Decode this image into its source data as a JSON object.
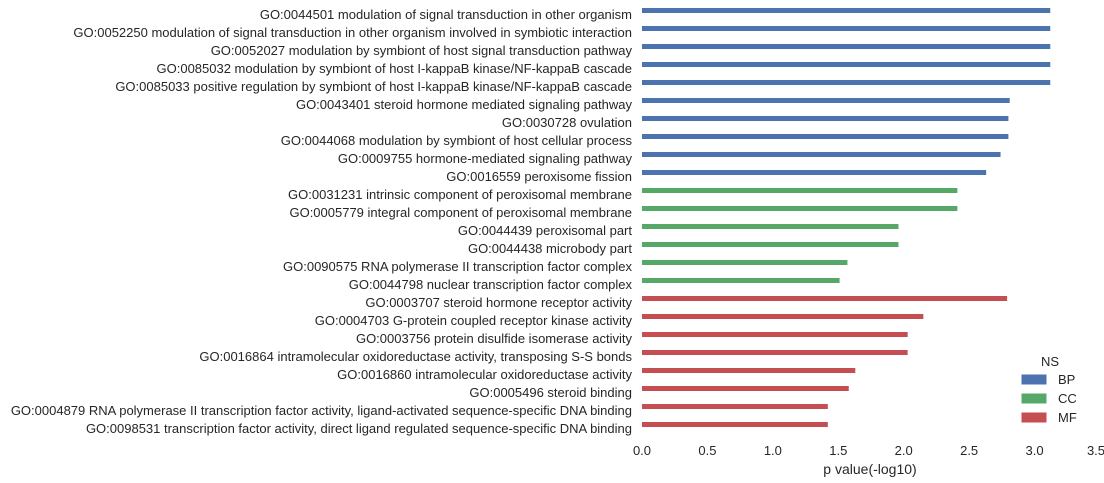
{
  "chart_data": {
    "type": "bar",
    "orientation": "horizontal",
    "xlabel": "p value(-log10)",
    "ylabel": "",
    "xlim": [
      0.0,
      3.5
    ],
    "x_ticks": [
      "0.0",
      "0.5",
      "1.0",
      "1.5",
      "2.0",
      "2.5",
      "3.0",
      "3.5"
    ],
    "grid": false,
    "legend": {
      "title": "NS",
      "placement": "bottom-right",
      "entries": [
        {
          "name": "BP",
          "color": "#4c72b0"
        },
        {
          "name": "CC",
          "color": "#55a868"
        },
        {
          "name": "MF",
          "color": "#c44e52"
        }
      ]
    },
    "bars": [
      {
        "term": "GO:0044501 modulation of signal transduction in other organism",
        "ns": "BP",
        "value": 3.12
      },
      {
        "term": "GO:0052250 modulation of signal transduction in other organism involved in symbiotic interaction",
        "ns": "BP",
        "value": 3.12
      },
      {
        "term": "GO:0052027 modulation by symbiont of host signal transduction pathway",
        "ns": "BP",
        "value": 3.12
      },
      {
        "term": "GO:0085032 modulation by symbiont of host I-kappaB kinase/NF-kappaB cascade",
        "ns": "BP",
        "value": 3.12
      },
      {
        "term": "GO:0085033 positive regulation by symbiont of host I-kappaB kinase/NF-kappaB cascade",
        "ns": "BP",
        "value": 3.12
      },
      {
        "term": "GO:0043401 steroid hormone mediated signaling pathway",
        "ns": "BP",
        "value": 2.81
      },
      {
        "term": "GO:0030728 ovulation",
        "ns": "BP",
        "value": 2.8
      },
      {
        "term": "GO:0044068 modulation by symbiont of host cellular process",
        "ns": "BP",
        "value": 2.8
      },
      {
        "term": "GO:0009755 hormone-mediated signaling pathway",
        "ns": "BP",
        "value": 2.74
      },
      {
        "term": "GO:0016559 peroxisome fission",
        "ns": "BP",
        "value": 2.63
      },
      {
        "term": "GO:0031231 intrinsic component of peroxisomal membrane",
        "ns": "CC",
        "value": 2.41
      },
      {
        "term": "GO:0005779 integral component of peroxisomal membrane",
        "ns": "CC",
        "value": 2.41
      },
      {
        "term": "GO:0044439 peroxisomal part",
        "ns": "CC",
        "value": 1.96
      },
      {
        "term": "GO:0044438 microbody part",
        "ns": "CC",
        "value": 1.96
      },
      {
        "term": "GO:0090575 RNA polymerase II transcription factor complex",
        "ns": "CC",
        "value": 1.57
      },
      {
        "term": "GO:0044798 nuclear transcription factor complex",
        "ns": "CC",
        "value": 1.51
      },
      {
        "term": "GO:0003707 steroid hormone receptor activity",
        "ns": "MF",
        "value": 2.79
      },
      {
        "term": "GO:0004703 G-protein coupled receptor kinase activity",
        "ns": "MF",
        "value": 2.15
      },
      {
        "term": "GO:0003756 protein disulfide isomerase activity",
        "ns": "MF",
        "value": 2.03
      },
      {
        "term": "GO:0016864 intramolecular oxidoreductase activity, transposing S-S bonds",
        "ns": "MF",
        "value": 2.03
      },
      {
        "term": "GO:0016860 intramolecular oxidoreductase activity",
        "ns": "MF",
        "value": 1.63
      },
      {
        "term": "GO:0005496 steroid binding",
        "ns": "MF",
        "value": 1.58
      },
      {
        "term": "GO:0004879 RNA polymerase II transcription factor activity, ligand-activated sequence-specific DNA binding",
        "ns": "MF",
        "value": 1.42
      },
      {
        "term": "GO:0098531 transcription factor activity, direct ligand regulated sequence-specific DNA binding",
        "ns": "MF",
        "value": 1.42
      }
    ]
  }
}
